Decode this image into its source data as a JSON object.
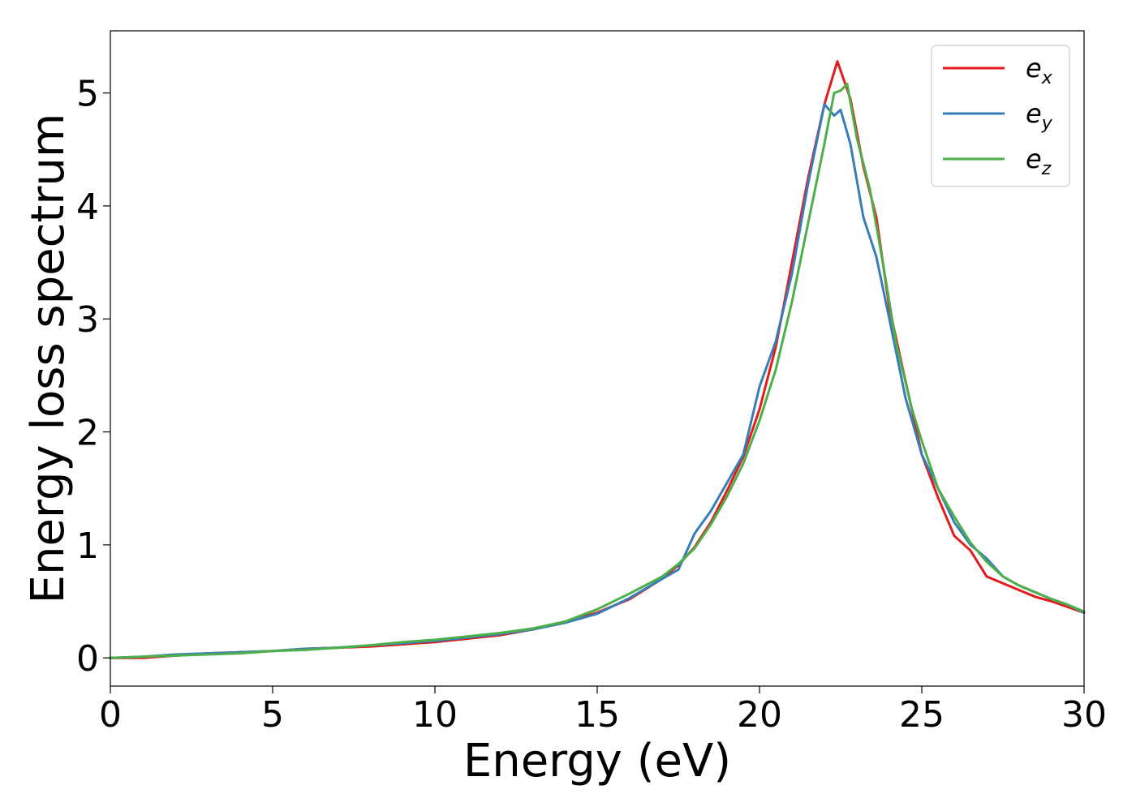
{
  "chart_data": {
    "type": "line",
    "xlabel": "Energy (eV)",
    "ylabel": "Energy loss spectrum",
    "xlim": [
      0,
      30
    ],
    "ylim": [
      -0.25,
      5.55
    ],
    "xticks": [
      0,
      5,
      10,
      15,
      20,
      25,
      30
    ],
    "xtick_labels": [
      "0",
      "5",
      "10",
      "15",
      "20",
      "25",
      "30"
    ],
    "yticks": [
      0,
      1,
      2,
      3,
      4,
      5
    ],
    "ytick_labels": [
      "0",
      "1",
      "2",
      "3",
      "4",
      "5"
    ],
    "grid": false,
    "legend_position": "top-right",
    "series": [
      {
        "name": "e_x",
        "label_main": "e",
        "label_sub": "x",
        "color": "#e41a1c",
        "x": [
          0,
          1,
          2,
          3,
          4,
          5,
          6,
          7,
          8,
          9,
          10,
          11,
          12,
          13,
          14,
          15,
          16,
          17,
          17.5,
          18,
          18.5,
          19,
          19.5,
          20,
          20.5,
          21,
          21.5,
          22,
          22.4,
          22.8,
          23.2,
          23.6,
          24,
          24.5,
          25,
          25.5,
          26,
          26.5,
          27,
          27.5,
          28,
          28.5,
          29,
          29.5,
          30
        ],
        "y": [
          0,
          0,
          0.02,
          0.04,
          0.05,
          0.06,
          0.08,
          0.09,
          0.1,
          0.12,
          0.14,
          0.17,
          0.2,
          0.25,
          0.32,
          0.4,
          0.52,
          0.7,
          0.82,
          0.98,
          1.2,
          1.48,
          1.78,
          2.2,
          2.75,
          3.5,
          4.25,
          4.9,
          5.28,
          4.95,
          4.35,
          3.9,
          3.1,
          2.45,
          1.8,
          1.42,
          1.08,
          0.95,
          0.72,
          0.66,
          0.6,
          0.54,
          0.5,
          0.45,
          0.4
        ]
      },
      {
        "name": "e_y",
        "label_main": "e",
        "label_sub": "y",
        "color": "#377eb8",
        "x": [
          0,
          1,
          2,
          3,
          4,
          5,
          6,
          7,
          8,
          9,
          10,
          11,
          12,
          13,
          14,
          15,
          16,
          17,
          17.5,
          18,
          18.5,
          19,
          19.5,
          20,
          20.5,
          21,
          21.5,
          22,
          22.3,
          22.5,
          22.8,
          23.2,
          23.6,
          24,
          24.5,
          25,
          25.5,
          26,
          26.5,
          27,
          27.5,
          28,
          28.5,
          29,
          29.5,
          30
        ],
        "y": [
          0,
          0.01,
          0.03,
          0.04,
          0.05,
          0.06,
          0.08,
          0.09,
          0.11,
          0.13,
          0.15,
          0.18,
          0.21,
          0.25,
          0.31,
          0.39,
          0.53,
          0.7,
          0.78,
          1.1,
          1.3,
          1.55,
          1.8,
          2.4,
          2.8,
          3.4,
          4.2,
          4.9,
          4.8,
          4.85,
          4.55,
          3.9,
          3.55,
          3.0,
          2.3,
          1.8,
          1.5,
          1.2,
          1.0,
          0.88,
          0.72,
          0.64,
          0.58,
          0.52,
          0.47,
          0.4
        ]
      },
      {
        "name": "e_z",
        "label_main": "e",
        "label_sub": "z",
        "color": "#4daf4a",
        "x": [
          0,
          1,
          2,
          3,
          4,
          5,
          6,
          7,
          8,
          9,
          10,
          11,
          12,
          13,
          14,
          15,
          16,
          17,
          17.5,
          18,
          18.5,
          19,
          19.5,
          20,
          20.5,
          21,
          21.5,
          22,
          22.3,
          22.5,
          22.7,
          23,
          23.4,
          23.8,
          24.2,
          24.7,
          25,
          25.5,
          26,
          26.5,
          27,
          27.5,
          28,
          28.5,
          29,
          29.5,
          30
        ],
        "y": [
          0,
          0.01,
          0.02,
          0.03,
          0.04,
          0.06,
          0.07,
          0.09,
          0.11,
          0.14,
          0.16,
          0.19,
          0.22,
          0.26,
          0.32,
          0.43,
          0.57,
          0.72,
          0.83,
          0.97,
          1.18,
          1.43,
          1.72,
          2.1,
          2.55,
          3.15,
          3.85,
          4.55,
          5.0,
          5.02,
          5.08,
          4.6,
          4.15,
          3.5,
          2.8,
          2.2,
          1.92,
          1.5,
          1.25,
          1.02,
          0.85,
          0.72,
          0.64,
          0.58,
          0.52,
          0.47,
          0.41
        ]
      }
    ]
  }
}
